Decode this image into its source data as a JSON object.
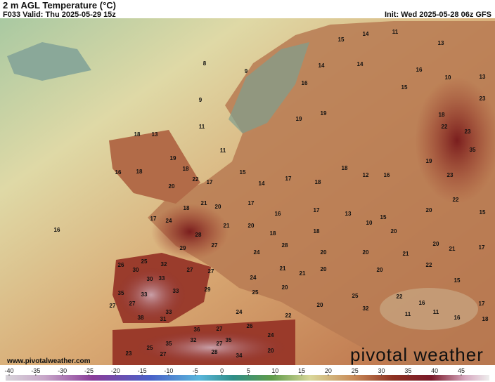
{
  "header": {
    "title": "2 m AGL Temperature (°C)",
    "valid": "F033 Valid: Thu 2025-05-29 15z",
    "init": "Init: Wed 2025-05-28 06z GFS"
  },
  "footer": {
    "url": "www.pivotalweather.com",
    "logo": "pivotal weather"
  },
  "colorbar": {
    "ticks": [
      -40,
      -35,
      -30,
      -25,
      -20,
      -15,
      -10,
      -5,
      0,
      5,
      10,
      15,
      20,
      25,
      30,
      35,
      40,
      45
    ]
  },
  "map_labels": [
    8,
    9,
    9,
    11,
    11,
    16,
    15,
    14,
    11,
    13,
    14,
    14,
    16,
    10,
    13,
    16,
    19,
    19,
    15,
    18,
    23,
    22,
    23,
    35,
    18,
    13,
    19,
    20,
    18,
    22,
    16,
    18,
    17,
    15,
    14,
    17,
    18,
    18,
    12,
    16,
    19,
    23,
    18,
    24,
    21,
    20,
    17,
    16,
    17,
    13,
    15,
    20,
    22,
    15,
    17,
    28,
    21,
    20,
    18,
    18,
    10,
    20,
    20,
    17,
    29,
    27,
    24,
    28,
    20,
    20,
    21,
    21,
    25,
    26,
    32,
    30,
    33,
    27,
    27,
    24,
    21,
    21,
    20,
    20,
    22,
    15,
    30,
    35,
    33,
    33,
    29,
    25,
    20,
    25,
    22,
    16,
    17,
    27,
    27,
    33,
    24,
    20,
    32,
    11,
    11,
    38,
    31,
    22,
    16,
    18,
    36,
    27,
    26,
    35,
    32,
    27,
    35,
    24,
    25,
    23,
    27,
    28,
    20,
    34
  ]
}
